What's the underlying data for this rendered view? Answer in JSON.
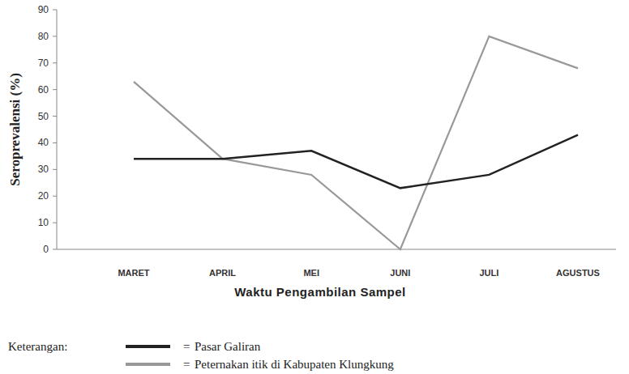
{
  "chart_data": {
    "type": "line",
    "y_label": "Seroprevalensi (%)",
    "x_label": "Waktu Pengambilan Sampel",
    "legend_title": "Keterangan:",
    "legend_separator": "=",
    "categories": [
      "MARET",
      "APRIL",
      "MEI",
      "JUNI",
      "JULI",
      "AGUSTUS"
    ],
    "series": [
      {
        "name": "Pasar Galiran",
        "color": "#222222",
        "values": [
          34,
          34,
          37,
          23,
          28,
          43
        ]
      },
      {
        "name": "Peternakan itik di Kabupaten Klungkung",
        "color": "#999999",
        "values": [
          63,
          34,
          28,
          0,
          80,
          68
        ]
      }
    ],
    "ylim": [
      0,
      90
    ],
    "yticks": [
      0,
      10,
      20,
      30,
      40,
      50,
      60,
      70,
      80,
      90
    ],
    "grid": false,
    "legend": "bottom"
  }
}
